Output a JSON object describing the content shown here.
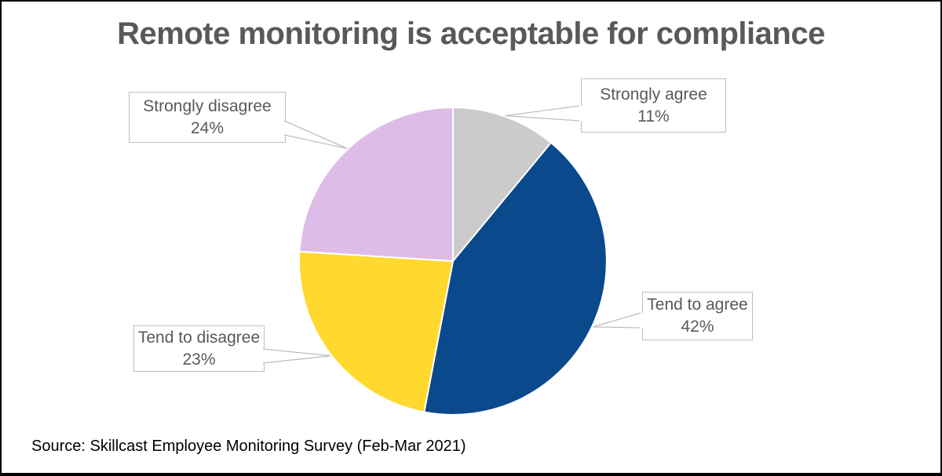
{
  "title": "Remote monitoring is acceptable for compliance",
  "source_note": "Source: Skillcast Employee Monitoring Survey (Feb-Mar 2021)",
  "colors": {
    "title_text": "#595959",
    "callout_text": "#595959",
    "callout_border": "#BFBFBF",
    "leader_line": "#BFBFBF",
    "slice_divider": "#FFFFFF",
    "background": "#FFFFFF",
    "frame_border": "#000000"
  },
  "chart_data": {
    "type": "pie",
    "title": "Remote monitoring is acceptable for compliance",
    "start_angle_deg": 0,
    "direction": "clockwise",
    "legend": "none",
    "label_style": "callout boxes with leader lines",
    "slices": [
      {
        "label": "Strongly agree",
        "value": 11,
        "pct_text": "11%",
        "color": "#CBCBCB"
      },
      {
        "label": "Tend to agree",
        "value": 42,
        "pct_text": "42%",
        "color": "#0A4A8C"
      },
      {
        "label": "Tend to disagree",
        "value": 23,
        "pct_text": "23%",
        "color": "#FFD92E"
      },
      {
        "label": "Strongly disagree",
        "value": 24,
        "pct_text": "24%",
        "color": "#DDBDE7"
      }
    ]
  }
}
